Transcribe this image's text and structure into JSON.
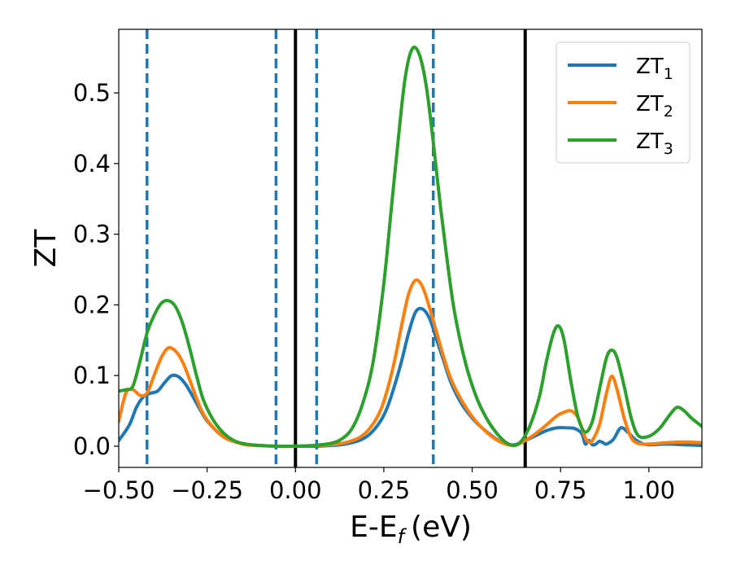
{
  "chart_data": {
    "type": "line",
    "xlabel": "E-E",
    "xlabel_subscript": "f",
    "xlabel_unit": "(eV)",
    "ylabel": "ZT",
    "xlim": [
      -0.5,
      1.15
    ],
    "ylim": [
      -0.03,
      0.59
    ],
    "xticks": [
      -0.5,
      -0.25,
      0.0,
      0.25,
      0.5,
      0.75,
      1.0
    ],
    "xtick_labels": [
      "−0.50",
      "−0.25",
      "0.00",
      "0.25",
      "0.50",
      "0.75",
      "1.00"
    ],
    "yticks": [
      0.0,
      0.1,
      0.2,
      0.3,
      0.4,
      0.5
    ],
    "ytick_labels": [
      "0.0",
      "0.1",
      "0.2",
      "0.3",
      "0.4",
      "0.5"
    ],
    "grid": false,
    "legend_position": "top-right",
    "series": [
      {
        "name": "ZT",
        "subscript": "1",
        "color": "#1f77b4",
        "x": [
          -0.5,
          -0.47,
          -0.45,
          -0.43,
          -0.41,
          -0.39,
          -0.37,
          -0.35,
          -0.33,
          -0.31,
          -0.29,
          -0.27,
          -0.25,
          -0.22,
          -0.19,
          -0.16,
          -0.13,
          -0.1,
          -0.05,
          0.0,
          0.05,
          0.1,
          0.14,
          0.18,
          0.21,
          0.24,
          0.26,
          0.28,
          0.3,
          0.32,
          0.34,
          0.36,
          0.38,
          0.4,
          0.42,
          0.44,
          0.47,
          0.5,
          0.53,
          0.56,
          0.59,
          0.62,
          0.65,
          0.68,
          0.71,
          0.74,
          0.77,
          0.79,
          0.81,
          0.82,
          0.83,
          0.84,
          0.85,
          0.86,
          0.87,
          0.88,
          0.9,
          0.92,
          0.94,
          0.96,
          0.98,
          1.0,
          1.05,
          1.1,
          1.15
        ],
        "y": [
          0.008,
          0.03,
          0.055,
          0.07,
          0.075,
          0.078,
          0.09,
          0.1,
          0.098,
          0.087,
          0.07,
          0.052,
          0.036,
          0.02,
          0.01,
          0.005,
          0.002,
          0.001,
          0.0,
          0.0,
          0.0,
          0.001,
          0.003,
          0.008,
          0.017,
          0.035,
          0.055,
          0.085,
          0.12,
          0.16,
          0.19,
          0.194,
          0.18,
          0.15,
          0.12,
          0.09,
          0.06,
          0.04,
          0.025,
          0.013,
          0.004,
          0.002,
          0.008,
          0.015,
          0.022,
          0.026,
          0.026,
          0.025,
          0.018,
          0.003,
          0.008,
          0.002,
          0.003,
          0.007,
          0.005,
          0.003,
          0.01,
          0.026,
          0.02,
          0.01,
          0.004,
          0.002,
          0.003,
          0.002,
          0.001
        ]
      },
      {
        "name": "ZT",
        "subscript": "2",
        "color": "#ff7f0e",
        "x": [
          -0.5,
          -0.48,
          -0.46,
          -0.44,
          -0.42,
          -0.4,
          -0.38,
          -0.36,
          -0.34,
          -0.32,
          -0.3,
          -0.28,
          -0.26,
          -0.23,
          -0.2,
          -0.17,
          -0.14,
          -0.1,
          -0.05,
          0.0,
          0.05,
          0.1,
          0.14,
          0.18,
          0.21,
          0.24,
          0.26,
          0.28,
          0.3,
          0.32,
          0.34,
          0.36,
          0.38,
          0.4,
          0.42,
          0.44,
          0.47,
          0.5,
          0.53,
          0.56,
          0.59,
          0.62,
          0.65,
          0.68,
          0.71,
          0.74,
          0.76,
          0.78,
          0.8,
          0.82,
          0.83,
          0.84,
          0.86,
          0.88,
          0.895,
          0.91,
          0.93,
          0.95,
          0.97,
          1.0,
          1.05,
          1.1,
          1.15
        ],
        "y": [
          0.035,
          0.075,
          0.08,
          0.072,
          0.075,
          0.1,
          0.125,
          0.139,
          0.135,
          0.12,
          0.095,
          0.068,
          0.045,
          0.025,
          0.012,
          0.006,
          0.002,
          0.001,
          0.0,
          0.0,
          0.001,
          0.002,
          0.005,
          0.012,
          0.025,
          0.05,
          0.08,
          0.12,
          0.17,
          0.215,
          0.235,
          0.225,
          0.195,
          0.16,
          0.125,
          0.095,
          0.065,
          0.042,
          0.025,
          0.012,
          0.004,
          0.001,
          0.008,
          0.018,
          0.03,
          0.043,
          0.048,
          0.05,
          0.04,
          0.012,
          0.006,
          0.008,
          0.03,
          0.075,
          0.099,
          0.08,
          0.04,
          0.012,
          0.004,
          0.003,
          0.005,
          0.006,
          0.005
        ]
      },
      {
        "name": "ZT",
        "subscript": "3",
        "color": "#2ca02c",
        "x": [
          -0.5,
          -0.48,
          -0.46,
          -0.44,
          -0.42,
          -0.4,
          -0.38,
          -0.36,
          -0.34,
          -0.32,
          -0.3,
          -0.28,
          -0.26,
          -0.23,
          -0.2,
          -0.17,
          -0.14,
          -0.1,
          -0.05,
          0.0,
          0.05,
          0.1,
          0.13,
          0.16,
          0.19,
          0.22,
          0.25,
          0.27,
          0.29,
          0.31,
          0.33,
          0.35,
          0.37,
          0.39,
          0.41,
          0.43,
          0.45,
          0.48,
          0.51,
          0.54,
          0.57,
          0.6,
          0.63,
          0.66,
          0.69,
          0.71,
          0.73,
          0.745,
          0.76,
          0.78,
          0.8,
          0.82,
          0.84,
          0.86,
          0.88,
          0.895,
          0.91,
          0.93,
          0.95,
          0.97,
          1.0,
          1.03,
          1.06,
          1.08,
          1.1,
          1.12,
          1.15
        ],
        "y": [
          0.078,
          0.08,
          0.085,
          0.12,
          0.16,
          0.185,
          0.202,
          0.206,
          0.198,
          0.175,
          0.14,
          0.1,
          0.065,
          0.035,
          0.017,
          0.007,
          0.003,
          0.001,
          0.0,
          0.0,
          0.001,
          0.004,
          0.01,
          0.025,
          0.06,
          0.12,
          0.23,
          0.33,
          0.43,
          0.52,
          0.562,
          0.555,
          0.51,
          0.43,
          0.34,
          0.26,
          0.19,
          0.12,
          0.072,
          0.04,
          0.018,
          0.004,
          0.003,
          0.025,
          0.07,
          0.12,
          0.16,
          0.17,
          0.15,
          0.09,
          0.04,
          0.02,
          0.035,
          0.08,
          0.125,
          0.136,
          0.125,
          0.085,
          0.04,
          0.015,
          0.014,
          0.025,
          0.045,
          0.055,
          0.05,
          0.04,
          0.028
        ]
      }
    ],
    "vlines": [
      {
        "x": -0.42,
        "style": "dashed",
        "color": "#1f77b4"
      },
      {
        "x": -0.055,
        "style": "dashed",
        "color": "#1f77b4"
      },
      {
        "x": 0.0,
        "style": "solid",
        "color": "#000000"
      },
      {
        "x": 0.06,
        "style": "dashed",
        "color": "#1f77b4"
      },
      {
        "x": 0.39,
        "style": "dashed",
        "color": "#1f77b4"
      },
      {
        "x": 0.65,
        "style": "solid",
        "color": "#000000"
      }
    ]
  }
}
